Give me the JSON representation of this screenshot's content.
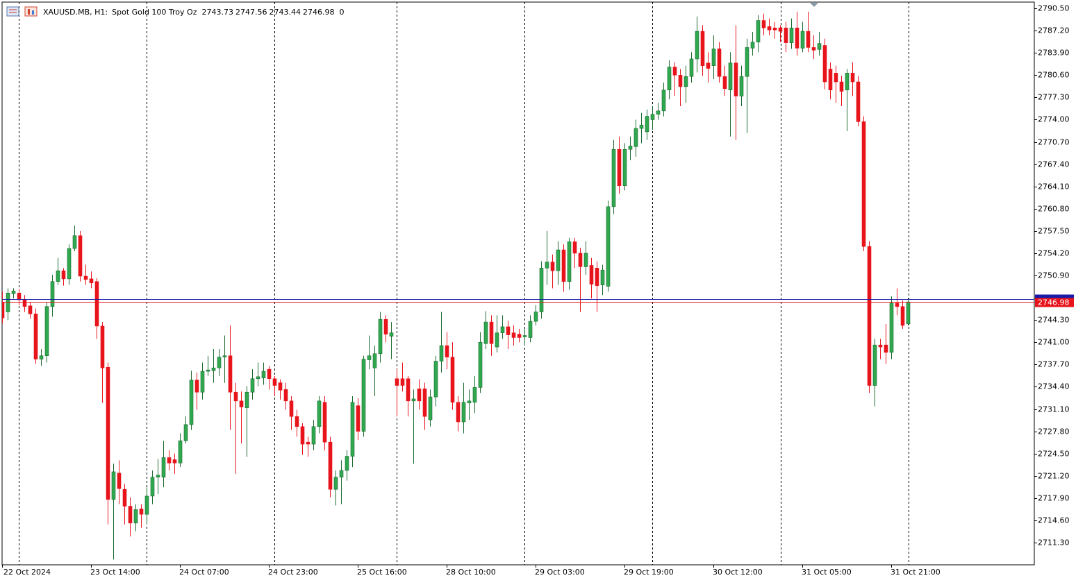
{
  "chart_data": {
    "type": "candlestick",
    "symbol": "XAUUSD.MB, H1:",
    "description": "Spot Gold 100 Troy Oz",
    "spread": 0,
    "ask": 2747.4,
    "up_color": "#2fa84f",
    "down_color": "#e8141c",
    "ask_color": "#1a1aa8",
    "bid_color": "#e8141c",
    "grid": false,
    "ylim": [
      2708.01,
      2791.43
    ],
    "yticks": [
      {
        "value": 2790.5,
        "label": "2790.50"
      },
      {
        "value": 2787.2,
        "label": "2787.20"
      },
      {
        "value": 2783.9,
        "label": "2783.90"
      },
      {
        "value": 2780.6,
        "label": "2780.60"
      },
      {
        "value": 2777.3,
        "label": "2777.30"
      },
      {
        "value": 2774.0,
        "label": "2774.00"
      },
      {
        "value": 2770.7,
        "label": "2770.70"
      },
      {
        "value": 2767.4,
        "label": "2767.40"
      },
      {
        "value": 2764.1,
        "label": "2764.10"
      },
      {
        "value": 2760.8,
        "label": "2760.80"
      },
      {
        "value": 2757.5,
        "label": "2757.50"
      },
      {
        "value": 2754.2,
        "label": "2754.20"
      },
      {
        "value": 2750.9,
        "label": "2750.90"
      },
      {
        "value": 2747.6,
        "label": "2747.60"
      },
      {
        "value": 2744.3,
        "label": "2744.30"
      },
      {
        "value": 2741.0,
        "label": "2741.00"
      },
      {
        "value": 2737.7,
        "label": "2737.70"
      },
      {
        "value": 2734.4,
        "label": "2734.40"
      },
      {
        "value": 2731.1,
        "label": "2731.10"
      },
      {
        "value": 2727.8,
        "label": "2727.80"
      },
      {
        "value": 2724.5,
        "label": "2724.50"
      },
      {
        "value": 2721.2,
        "label": "2721.20"
      },
      {
        "value": 2717.9,
        "label": "2717.90"
      },
      {
        "value": 2714.6,
        "label": "2714.60"
      },
      {
        "value": 2711.3,
        "label": "2711.30"
      }
    ],
    "categories": [
      "22 Oct 2024",
      null,
      null,
      null,
      null,
      null,
      null,
      null,
      null,
      null,
      null,
      null,
      null,
      null,
      null,
      null,
      "23 Oct 14:00",
      null,
      null,
      null,
      null,
      null,
      null,
      null,
      null,
      null,
      null,
      null,
      null,
      null,
      null,
      null,
      "24 Oct 07:00",
      null,
      null,
      null,
      null,
      null,
      null,
      null,
      null,
      null,
      null,
      null,
      null,
      null,
      null,
      null,
      "24 Oct 23:00",
      null,
      null,
      null,
      null,
      null,
      null,
      null,
      null,
      null,
      null,
      null,
      null,
      null,
      null,
      null,
      "25 Oct 16:00",
      null,
      null,
      null,
      null,
      null,
      null,
      null,
      null,
      null,
      null,
      null,
      null,
      null,
      null,
      null,
      "28 Oct 10:00",
      null,
      null,
      null,
      null,
      null,
      null,
      null,
      null,
      null,
      null,
      null,
      null,
      null,
      null,
      null,
      "29 Oct 03:00",
      null,
      null,
      null,
      null,
      null,
      null,
      null,
      null,
      null,
      null,
      null,
      null,
      null,
      null,
      null,
      "29 Oct 19:00",
      null,
      null,
      null,
      null,
      null,
      null,
      null,
      null,
      null,
      null,
      null,
      null,
      null,
      null,
      null,
      "30 Oct 12:00",
      null,
      null,
      null,
      null,
      null,
      null,
      null,
      null,
      null,
      null,
      null,
      null,
      null,
      null,
      null,
      "31 Oct 05:00",
      null,
      null,
      null,
      null,
      null,
      null,
      null,
      null,
      null,
      null,
      null,
      null,
      null,
      null,
      null,
      "31 Oct 21:00",
      null,
      null,
      null
    ],
    "open": [
      2746.9,
      2745.5,
      2748.2,
      2748.3,
      2747.3,
      2746.4,
      2745.2,
      2738.5,
      2739,
      2746.3,
      2750,
      2751.6,
      2750.4,
      2754.9,
      2756.8,
      2750.8,
      2750.4,
      2750,
      2743.4,
      2737.3,
      2717.7,
      2721.6,
      2719.2,
      2716.7,
      2714.2,
      2716.3,
      2715.5,
      2718.2,
      2721,
      2721,
      2723.9,
      2723.6,
      2723.1,
      2726.4,
      2728.8,
      2735.4,
      2733.6,
      2736.7,
      2736.8,
      2737.2,
      2738.8,
      2739,
      2733.6,
      2732.3,
      2731.3,
      2733.6,
      2735.6,
      2735.7,
      2737,
      2735.6,
      2735,
      2734,
      2732.3,
      2730,
      2728.5,
      2726.2,
      2725.9,
      2728.5,
      2732.1,
      2726.2,
      2719.2,
      2721,
      2722,
      2724.1,
      2731.6,
      2727.8,
      2738.4,
      2737.2,
      2739.3,
      2744.4,
      2741.9,
      2735.6,
      2735.6,
      2735.6,
      2732.3,
      2734.1,
      2734.1,
      2729.5,
      2732.9,
      2738.2,
      2740.5,
      2738.8,
      2732.1,
      2729.2,
      2732,
      2732.1,
      2734.3,
      2740.8,
      2744,
      2740.3,
      2742.4,
      2743.3,
      2742.4,
      2742.2,
      2741.8,
      2741.7,
      2744.1,
      2745.5,
      2752,
      2752.9,
      2751.6,
      2754.7,
      2750,
      2755.9,
      2754.2,
      2752.2,
      2752.4,
      2752,
      2749.5,
      2749.3,
      2761.1,
      2769.6,
      2764.2,
      2769.6,
      2770,
      2772.7,
      2772.2,
      2774,
      2774.8,
      2775.3,
      2778.4,
      2781.8,
      2780.6,
      2778.9,
      2780.4,
      2783,
      2787.1,
      2782.4,
      2782,
      2784.5,
      2780.4,
      2778.4,
      2782.4,
      2777.5,
      2780.4,
      2784.6,
      2785.5,
      2788.7,
      2787.8,
      2787.6,
      2787.6,
      2787.6,
      2785.4,
      2787.6,
      2784.6,
      2787.1,
      2784.7,
      2784.4,
      2785,
      2781.5,
      2780.9,
      2779.6,
      2778.4,
      2780.9,
      2779.6,
      2773.7,
      2755.2,
      2734.6,
      2740.6,
      2740.6,
      2739.5,
      2746.8,
      2746.3,
      2743.73
    ],
    "high": [
      2748.5,
      2749,
      2749,
      2748.9,
      2748,
      2747,
      2746,
      2740,
      2747,
      2751,
      2753.5,
      2752,
      2755.5,
      2758.3,
      2757.5,
      2752.5,
      2751.5,
      2750.5,
      2744,
      2738,
      2723,
      2723.5,
      2720,
      2718,
      2717,
      2717,
      2719.5,
      2722,
      2723.7,
      2726.4,
      2725,
      2724.5,
      2727.5,
      2730,
      2736.8,
      2736.5,
      2738,
      2739,
      2740,
      2740,
      2742,
      2743.5,
      2735,
      2733.7,
      2734.5,
      2737,
      2738,
      2738,
      2737.5,
      2736,
      2735.5,
      2735,
      2733,
      2731,
      2729,
      2727,
      2729.5,
      2733,
      2733,
      2727,
      2722,
      2723.5,
      2725,
      2733,
      2732.7,
      2739,
      2742,
      2740.5,
      2745.5,
      2745,
      2744,
      2737,
      2738,
      2736,
      2734,
      2735.5,
      2735,
      2734,
      2739,
      2745.5,
      2742.5,
      2741,
      2733,
      2735,
      2734,
      2736,
      2742.5,
      2745.6,
      2745,
      2745,
      2745,
      2744.2,
      2743.5,
      2743,
      2743,
      2745,
      2746.5,
      2753,
      2757.5,
      2754,
      2756,
      2755.5,
      2756.5,
      2756.5,
      2755,
      2756,
      2753.5,
      2753,
      2752.5,
      2762,
      2771,
      2771.5,
      2770.5,
      2771.5,
      2774,
      2775,
      2775.5,
      2776,
      2776.5,
      2779.5,
      2782.8,
      2782.5,
      2781.5,
      2782,
      2784,
      2789.3,
      2788,
      2784,
      2786.5,
      2785.5,
      2782,
      2784,
      2788,
      2782,
      2786,
      2787,
      2789.5,
      2789.7,
      2789,
      2788.5,
      2788,
      2788.5,
      2789,
      2790,
      2788.5,
      2790,
      2786.5,
      2787,
      2786,
      2782.5,
      2782,
      2780.5,
      2781.5,
      2782.5,
      2780.5,
      2774.5,
      2756,
      2741.5,
      2741.5,
      2743.7,
      2747.8,
      2749,
      2747.2,
      2747.56
    ],
    "low": [
      2743.8,
      2744.3,
      2747.5,
      2746.5,
      2745.5,
      2744.5,
      2737.8,
      2737.5,
      2738,
      2744.8,
      2749.5,
      2749.4,
      2749.5,
      2754.5,
      2750,
      2749.5,
      2749,
      2741.5,
      2732,
      2714,
      2708.8,
      2717,
      2714,
      2712.2,
      2713,
      2713.5,
      2714,
      2717,
      2718.5,
      2719.5,
      2722,
      2721.5,
      2722.5,
      2726,
      2728,
      2731,
      2732.5,
      2736,
      2735,
      2736,
      2735,
      2728,
      2721.5,
      2726,
      2724,
      2732.5,
      2734.5,
      2734.7,
      2734,
      2733,
      2732.5,
      2731,
      2728,
      2727,
      2724.3,
      2724,
      2725,
      2727.5,
      2725,
      2718,
      2716.8,
      2717,
      2720.5,
      2722.5,
      2726.5,
      2727,
      2737,
      2733,
      2738,
      2741,
      2738.5,
      2730,
      2733.7,
      2730,
      2723,
      2731,
      2728,
      2728.5,
      2731.5,
      2736.5,
      2737,
      2731,
      2727.8,
      2727.5,
      2729.5,
      2730.5,
      2733.5,
      2740,
      2739,
      2739.5,
      2741.5,
      2740,
      2740.5,
      2741,
      2740.5,
      2741,
      2743.5,
      2744.5,
      2749.5,
      2749,
      2749.5,
      2748.5,
      2748.8,
      2752,
      2745.5,
      2751,
      2747.5,
      2745.5,
      2748,
      2748.5,
      2760,
      2763,
      2763.5,
      2768,
      2768.5,
      2770.5,
      2771,
      2772.5,
      2774,
      2774.5,
      2777,
      2777.5,
      2776,
      2776.5,
      2779.5,
      2781,
      2780.5,
      2779.5,
      2780,
      2779.5,
      2777.5,
      2771.5,
      2771,
      2776,
      2772,
      2783.5,
      2784,
      2786.5,
      2786.5,
      2786,
      2785.5,
      2784,
      2784.5,
      2783.5,
      2784,
      2784,
      2783,
      2783.5,
      2778.5,
      2777,
      2776.5,
      2776,
      2772.3,
      2777.5,
      2773,
      2754.5,
      2733.5,
      2731.5,
      2738.5,
      2737.8,
      2738.5,
      2745,
      2743,
      2743.44
    ],
    "close": [
      2744.6,
      2748.3,
      2748.6,
      2747.3,
      2746.3,
      2745.2,
      2738.5,
      2739,
      2746.3,
      2750,
      2751.6,
      2750.4,
      2754.9,
      2756.8,
      2750.8,
      2750.3,
      2749.8,
      2743.4,
      2737.2,
      2717.7,
      2721.8,
      2719.3,
      2716.7,
      2714.2,
      2716.2,
      2715.5,
      2718.2,
      2721,
      2721.3,
      2723.9,
      2723.1,
      2723.1,
      2726.4,
      2728.8,
      2735.4,
      2733.6,
      2736.7,
      2736.9,
      2737.2,
      2738.8,
      2739,
      2733.6,
      2732.3,
      2731.4,
      2733.6,
      2735.6,
      2735.9,
      2736.7,
      2735.6,
      2734.6,
      2733.9,
      2732.3,
      2730,
      2728.5,
      2725.9,
      2725.9,
      2728.5,
      2732.3,
      2726.2,
      2719.2,
      2721,
      2722,
      2724.1,
      2732.1,
      2727.8,
      2738.5,
      2739,
      2739.3,
      2744.4,
      2742.2,
      2742.4,
      2734.6,
      2734.6,
      2732.3,
      2732.6,
      2732.3,
      2730,
      2732.9,
      2738.2,
      2740.5,
      2738.8,
      2732.1,
      2729.2,
      2732.1,
      2732.3,
      2734.3,
      2741,
      2744,
      2740.8,
      2742.4,
      2743.3,
      2742.1,
      2741.7,
      2741.7,
      2742,
      2744.1,
      2745.5,
      2752,
      2752.9,
      2751.6,
      2754.7,
      2750,
      2755.9,
      2754.2,
      2752.2,
      2754.2,
      2749.6,
      2749.4,
      2751.7,
      2761.1,
      2769.6,
      2764.2,
      2769.6,
      2770.1,
      2772.7,
      2773.2,
      2774.5,
      2774.8,
      2775.3,
      2778.4,
      2781.8,
      2780.6,
      2778.9,
      2780.4,
      2783,
      2787.1,
      2782,
      2781.6,
      2784.5,
      2780.4,
      2778.6,
      2782.4,
      2777.5,
      2780.4,
      2784.7,
      2785.5,
      2788.7,
      2787.6,
      2787.3,
      2787.3,
      2787.1,
      2785.4,
      2787.6,
      2784.6,
      2787.1,
      2784.7,
      2784.3,
      2785.3,
      2779.6,
      2778.4,
      2779.6,
      2778.2,
      2780.9,
      2779.6,
      2773.7,
      2755.2,
      2734.6,
      2740.6,
      2740.3,
      2739.5,
      2746.8,
      2746.3,
      2743.5,
      2746.98
    ]
  }
}
